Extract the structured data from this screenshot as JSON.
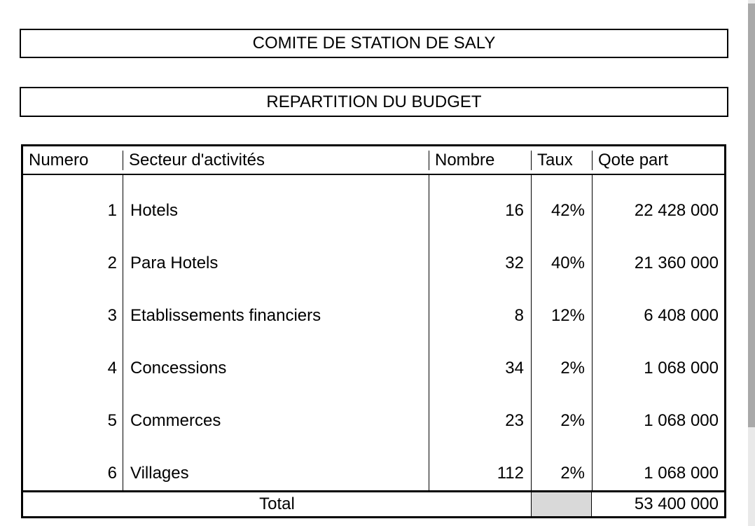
{
  "titles": {
    "main": "COMITE DE STATION DE SALY",
    "subtitle": "REPARTITION DU BUDGET"
  },
  "table": {
    "headers": {
      "numero": "Numero",
      "secteur": "Secteur d'activités",
      "nombre": "Nombre",
      "taux": "Taux",
      "qote_part": "Qote part"
    },
    "rows": [
      {
        "numero": "1",
        "secteur": "Hotels",
        "nombre": "16",
        "taux": "42%",
        "qote_part": "22 428 000"
      },
      {
        "numero": "2",
        "secteur": "Para Hotels",
        "nombre": "32",
        "taux": "40%",
        "qote_part": "21 360 000"
      },
      {
        "numero": "3",
        "secteur": "Etablissements financiers",
        "nombre": "8",
        "taux": "12%",
        "qote_part": "6 408 000"
      },
      {
        "numero": "4",
        "secteur": "Concessions",
        "nombre": "34",
        "taux": "2%",
        "qote_part": "1 068 000"
      },
      {
        "numero": "5",
        "secteur": "Commerces",
        "nombre": "23",
        "taux": "2%",
        "qote_part": "1 068 000"
      },
      {
        "numero": "6",
        "secteur": "Villages",
        "nombre": "112",
        "taux": "2%",
        "qote_part": "1 068 000"
      }
    ],
    "total": {
      "label": "Total",
      "qote_part": "53 400 000"
    }
  },
  "colors": {
    "page_bg": "#ffffff",
    "text": "#000000",
    "border": "#000000",
    "total_taux_cell_bg": "#d9d9d9",
    "scrollbar_thumb": "#a9a9a9",
    "scrollbar_track": "#e9e9e9"
  }
}
